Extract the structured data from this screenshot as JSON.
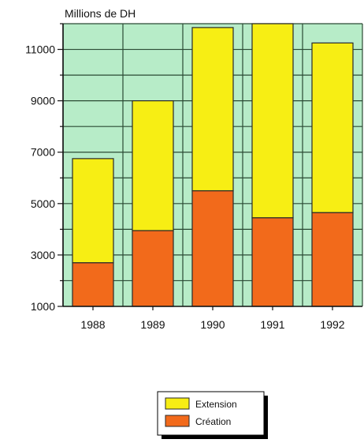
{
  "chart_data": {
    "type": "bar",
    "stacked": true,
    "ylabel": "Millions de DH",
    "categories": [
      "1988",
      "1989",
      "1990",
      "1991",
      "1992"
    ],
    "series": [
      {
        "name": "Création",
        "values": [
          1700,
          2950,
          4500,
          3450,
          3650
        ]
      },
      {
        "name": "Extension",
        "values": [
          4050,
          5050,
          6350,
          7550,
          6600
        ]
      }
    ],
    "totals": [
      5750,
      8000,
      10850,
      11000,
      10250
    ],
    "ylim": [
      1000,
      12000
    ],
    "yticks": [
      1000,
      3000,
      5000,
      7000,
      9000,
      11000
    ],
    "grid": true,
    "legend_position": "bottom-center",
    "colors": {
      "plot_background": "#b7ecc8",
      "grid": "#2b4a34",
      "Extension": "#f7ee14",
      "Création": "#f26a1b",
      "bar_edge": "#2a2a2a"
    }
  }
}
